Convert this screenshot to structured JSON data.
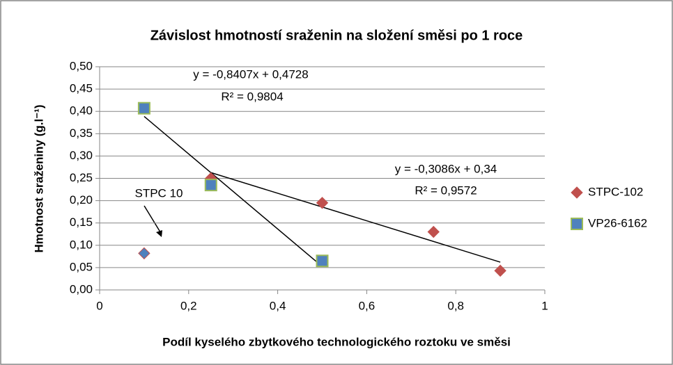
{
  "chart_data": {
    "type": "scatter",
    "title": "Závislost hmotností sraženin na složení směsi po 1 roce",
    "x_label": "Podíl kyselého zbytkového technologického roztoku ve směsi",
    "y_label": "Hmotnost sraženiny (g.l⁻¹)",
    "xlim": [
      0,
      1
    ],
    "xticks": [
      0,
      {
        "value": 0.2,
        "label": "0,2"
      },
      {
        "value": 0.4,
        "label": "0,4"
      },
      {
        "value": 0.6,
        "label": "0,6"
      },
      {
        "value": 0.8,
        "label": "0,8"
      },
      1
    ],
    "ylim": [
      0,
      0.5
    ],
    "yticks": [
      {
        "value": 0,
        "label": "0,00"
      },
      {
        "value": 0.05,
        "label": "0,05"
      },
      {
        "value": 0.1,
        "label": "0,10"
      },
      {
        "value": 0.15,
        "label": "0,15"
      },
      {
        "value": 0.2,
        "label": "0,20"
      },
      {
        "value": 0.25,
        "label": "0,25"
      },
      {
        "value": 0.3,
        "label": "0,30"
      },
      {
        "value": 0.35,
        "label": "0,35"
      },
      {
        "value": 0.4,
        "label": "0,40"
      },
      {
        "value": 0.45,
        "label": "0,45"
      },
      {
        "value": 0.5,
        "label": "0,50"
      }
    ],
    "grid": true,
    "legend": "right",
    "series": [
      {
        "name": "STPC-102",
        "color": "#c0504d",
        "marker": "diamond",
        "x": [
          0.25,
          0.5,
          0.75,
          0.9
        ],
        "values": [
          0.25,
          0.195,
          0.13,
          0.043
        ]
      },
      {
        "name": "VP26-6162",
        "color": "#4f81bd",
        "edge": "#9bbb59",
        "marker": "square",
        "x": [
          0.1,
          0.25,
          0.5
        ],
        "values": [
          0.407,
          0.235,
          0.065
        ]
      }
    ],
    "annotation": {
      "text": "STPC 10",
      "x": 0.1,
      "y": 0.082,
      "color": "#4f81bd",
      "edge": "#c0504d"
    },
    "trendlines": [
      {
        "series": 1,
        "slope": -0.8407,
        "intercept": 0.4728,
        "equation": "y = -0,8407x + 0,4728",
        "r2": "R² = 0,9804"
      },
      {
        "series": 0,
        "slope": -0.3086,
        "intercept": 0.34,
        "equation": "y = -0,3086x + 0,34",
        "r2": "R² = 0,9572"
      }
    ]
  }
}
